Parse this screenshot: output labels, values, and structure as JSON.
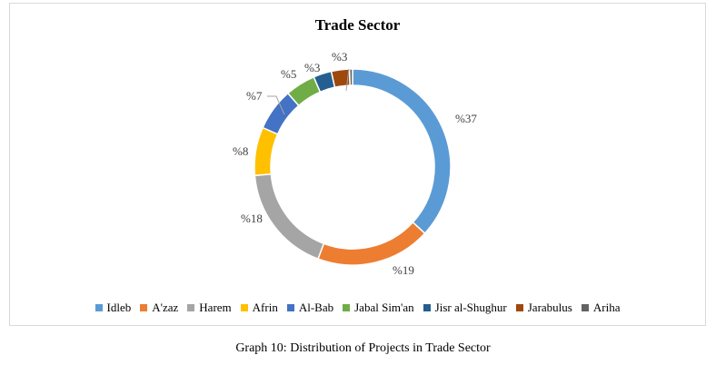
{
  "caption": "Graph 10: Distribution of Projects in Trade Sector",
  "chart_data": {
    "type": "pie",
    "subtype": "donut",
    "title": "Trade Sector",
    "legend_position": "bottom",
    "start_angle_deg": 0,
    "direction": "clockwise",
    "slices": [
      {
        "name": "Idleb",
        "value": 37,
        "label": "%37",
        "color": "#5b9bd5"
      },
      {
        "name": "A'zaz",
        "value": 19,
        "label": "%19",
        "color": "#ed7d31"
      },
      {
        "name": "Harem",
        "value": 18,
        "label": "%18",
        "color": "#a5a5a5"
      },
      {
        "name": "Afrin",
        "value": 8,
        "label": "%8",
        "color": "#ffc000"
      },
      {
        "name": "Al-Bab",
        "value": 7,
        "label": "%7",
        "color": "#4472c4"
      },
      {
        "name": "Jabal Sim'an",
        "value": 5,
        "label": "%5",
        "color": "#70ad47"
      },
      {
        "name": "Jisr al-Shughur",
        "value": 3,
        "label": "%3",
        "color": "#255e91"
      },
      {
        "name": "Jarabulus",
        "value": 3,
        "label": "%3",
        "color": "#9e480e"
      },
      {
        "name": "Ariha",
        "value": 0.5,
        "label": "",
        "color": "#636363"
      }
    ]
  }
}
